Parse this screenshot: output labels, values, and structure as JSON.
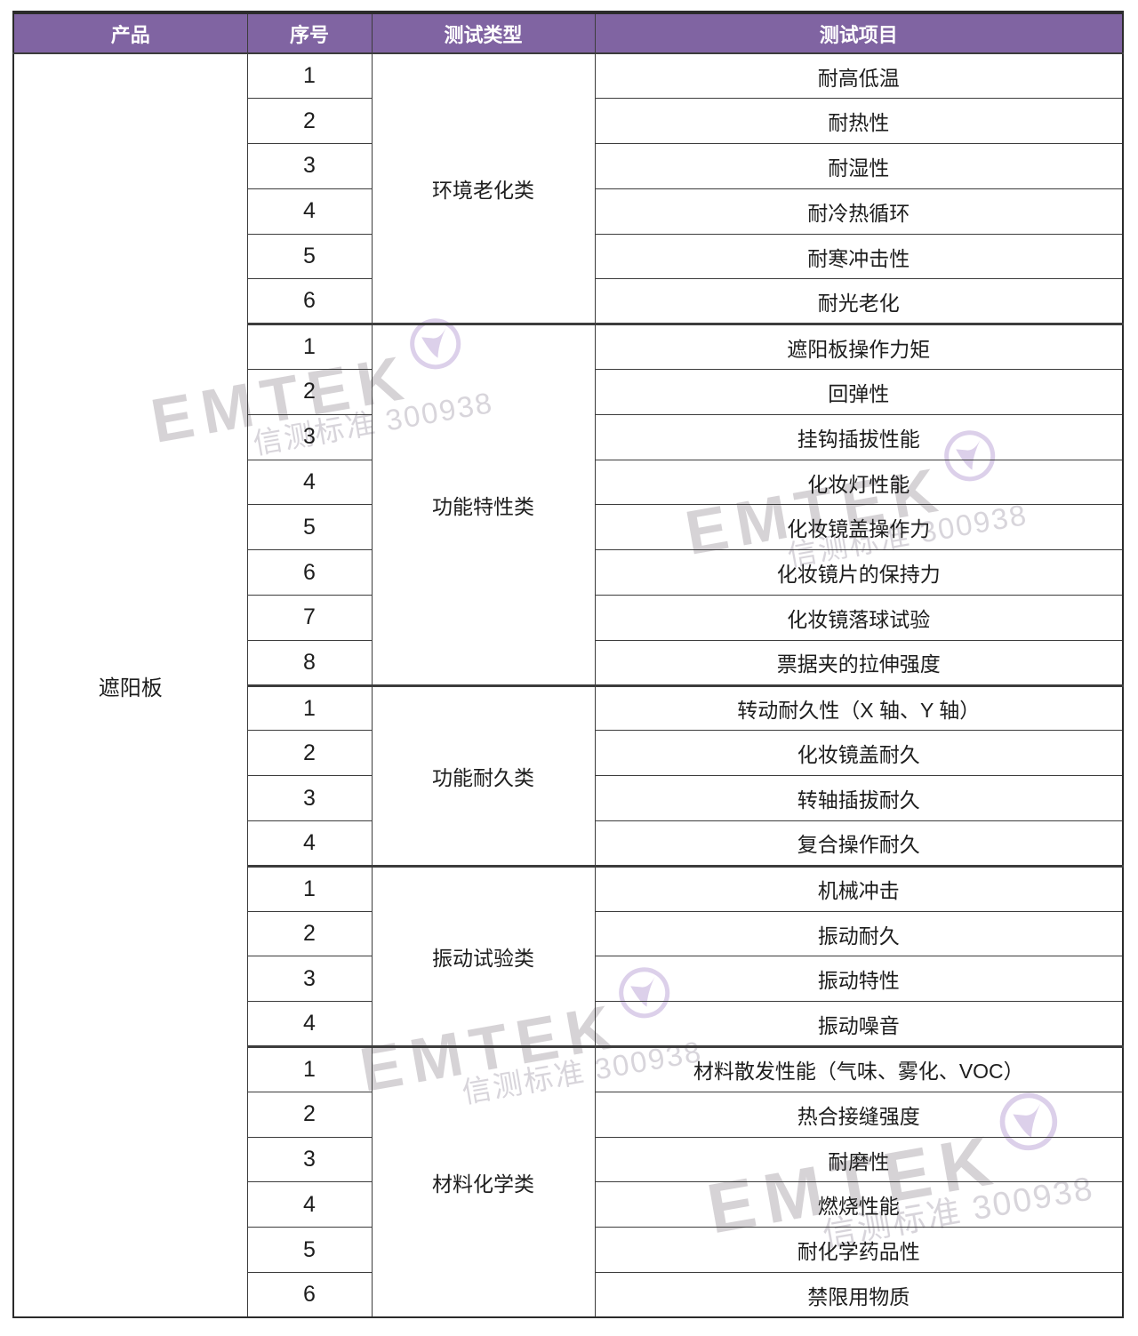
{
  "table": {
    "headers": [
      "产品",
      "序号",
      "测试类型",
      "测试项目"
    ],
    "product": "遮阳板",
    "groups": [
      {
        "type": "环境老化类",
        "items": [
          "耐高低温",
          "耐热性",
          "耐湿性",
          "耐冷热循环",
          "耐寒冲击性",
          "耐光老化"
        ]
      },
      {
        "type": "功能特性类",
        "items": [
          "遮阳板操作力矩",
          "回弹性",
          "挂钩插拔性能",
          "化妆灯性能",
          "化妆镜盖操作力",
          "化妆镜片的保持力",
          "化妆镜落球试验",
          "票据夹的拉伸强度"
        ]
      },
      {
        "type": "功能耐久类",
        "items": [
          "转动耐久性（X 轴、Y 轴）",
          "化妆镜盖耐久",
          "转轴插拔耐久",
          "复合操作耐久"
        ]
      },
      {
        "type": "振动试验类",
        "items": [
          "机械冲击",
          "振动耐久",
          "振动特性",
          "振动噪音"
        ]
      },
      {
        "type": "材料化学类",
        "items": [
          "材料散发性能（气味、雾化、VOC）",
          "热合接缝强度",
          "耐磨性",
          "燃烧性能",
          "耐化学药品性",
          "禁限用物质"
        ]
      }
    ]
  },
  "watermark": {
    "brand": "EMTEK",
    "subtext": "信测标准 300938",
    "logo": "check-circle-logo"
  },
  "colors": {
    "header_bg": "#8064A2",
    "header_text": "#FFFFFF",
    "border": "#3C3C3C",
    "text": "#1D1D1D",
    "watermark_gray": "#D6D3D6",
    "watermark_purple": "#DCD0EA"
  }
}
